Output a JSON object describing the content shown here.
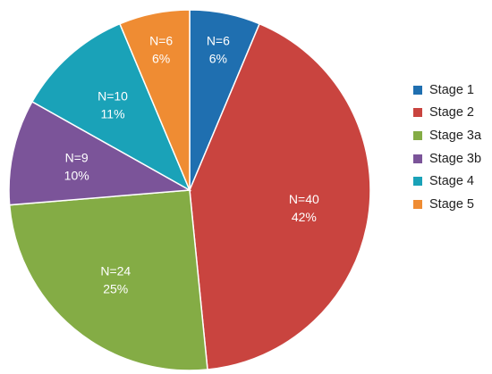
{
  "chart_data": {
    "type": "pie",
    "slices": [
      {
        "name": "Stage 1",
        "n_label": "N=6",
        "pct_label": "6%",
        "value": 6,
        "color": "#1f6fb0"
      },
      {
        "name": "Stage 2",
        "n_label": "N=40",
        "pct_label": "42%",
        "value": 40,
        "color": "#c9443f"
      },
      {
        "name": "Stage 3a",
        "n_label": "N=24",
        "pct_label": "25%",
        "value": 24,
        "color": "#84ac45"
      },
      {
        "name": "Stage 3b",
        "n_label": "N=9",
        "pct_label": "10%",
        "value": 9,
        "color": "#7b5499"
      },
      {
        "name": "Stage 4",
        "n_label": "N=10",
        "pct_label": "11%",
        "value": 10,
        "color": "#1aa2b8"
      },
      {
        "name": "Stage 5",
        "n_label": "N=6",
        "pct_label": "6%",
        "value": 6,
        "color": "#ef8c33"
      }
    ],
    "legend": {
      "position": "right"
    }
  }
}
